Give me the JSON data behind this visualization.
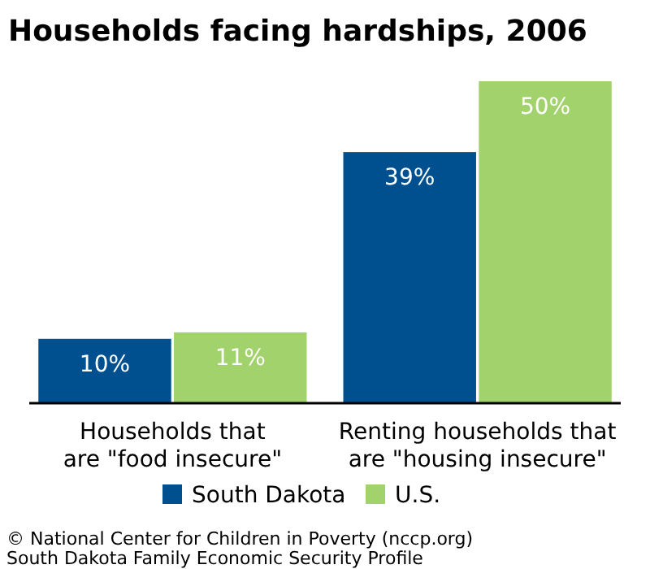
{
  "chart_data": {
    "type": "bar",
    "title": "Households facing hardships, 2006",
    "categories": [
      "Households that are \"food insecure\"",
      "Renting households that are \"housing insecure\""
    ],
    "series": [
      {
        "name": "South Dakota",
        "color": "#00508f",
        "values": [
          10,
          39
        ],
        "value_labels": [
          "10%",
          "39%"
        ]
      },
      {
        "name": "U.S.",
        "color": "#a2d26b",
        "values": [
          11,
          50
        ],
        "value_labels": [
          "11%",
          "50%"
        ]
      }
    ],
    "legend": "bottom",
    "annotations": [
      "© National Center for Children in Poverty (nccp.org)",
      "South Dakota Family Economic Security Profile"
    ]
  }
}
